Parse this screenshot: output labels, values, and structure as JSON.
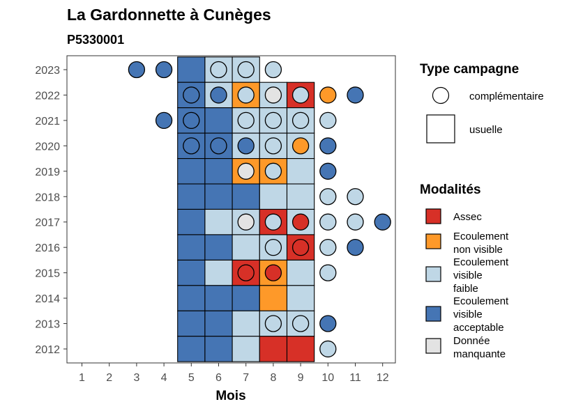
{
  "chart_data": {
    "type": "heatmap",
    "title": "La Gardonnette à Cunèges",
    "subtitle": "P5330001",
    "xlabel": "Mois",
    "x_ticks": [
      1,
      2,
      3,
      4,
      5,
      6,
      7,
      8,
      9,
      10,
      11,
      12
    ],
    "y_ticks": [
      2012,
      2013,
      2014,
      2015,
      2016,
      2017,
      2018,
      2019,
      2020,
      2021,
      2022,
      2023
    ],
    "modalites": [
      {
        "key": "assec",
        "label_lines": [
          "Assec"
        ],
        "color": "#d73027"
      },
      {
        "key": "ecnv",
        "label_lines": [
          "Ecoulement",
          "non visible"
        ],
        "color": "#fe9929"
      },
      {
        "key": "ecvf",
        "label_lines": [
          "Ecoulement",
          "visible",
          "faible"
        ],
        "color": "#bfd7e6"
      },
      {
        "key": "ecva",
        "label_lines": [
          "Ecoulement",
          "visible",
          "acceptable"
        ],
        "color": "#4575b4"
      },
      {
        "key": "dm",
        "label_lines": [
          "Donnée",
          "manquante"
        ],
        "color": "#e3e3e3"
      }
    ],
    "legend_type_title": "Type campagne",
    "legend_type_items": [
      "complémentaire",
      "usuelle"
    ],
    "legend_modalites_title": "Modalités",
    "usuelle": [
      {
        "year": 2023,
        "month": 5,
        "m": "ecva"
      },
      {
        "year": 2023,
        "month": 6,
        "m": "ecvf"
      },
      {
        "year": 2023,
        "month": 7,
        "m": "ecvf"
      },
      {
        "year": 2022,
        "month": 5,
        "m": "ecva"
      },
      {
        "year": 2022,
        "month": 6,
        "m": "ecvf"
      },
      {
        "year": 2022,
        "month": 7,
        "m": "ecnv"
      },
      {
        "year": 2022,
        "month": 8,
        "m": "ecvf"
      },
      {
        "year": 2022,
        "month": 9,
        "m": "assec"
      },
      {
        "year": 2021,
        "month": 5,
        "m": "ecva"
      },
      {
        "year": 2021,
        "month": 6,
        "m": "ecva"
      },
      {
        "year": 2021,
        "month": 7,
        "m": "ecvf"
      },
      {
        "year": 2021,
        "month": 8,
        "m": "ecvf"
      },
      {
        "year": 2021,
        "month": 9,
        "m": "ecvf"
      },
      {
        "year": 2020,
        "month": 5,
        "m": "ecva"
      },
      {
        "year": 2020,
        "month": 6,
        "m": "ecva"
      },
      {
        "year": 2020,
        "month": 7,
        "m": "ecvf"
      },
      {
        "year": 2020,
        "month": 8,
        "m": "ecvf"
      },
      {
        "year": 2020,
        "month": 9,
        "m": "ecvf"
      },
      {
        "year": 2019,
        "month": 5,
        "m": "ecva"
      },
      {
        "year": 2019,
        "month": 6,
        "m": "ecva"
      },
      {
        "year": 2019,
        "month": 7,
        "m": "ecnv"
      },
      {
        "year": 2019,
        "month": 8,
        "m": "ecnv"
      },
      {
        "year": 2019,
        "month": 9,
        "m": "ecvf"
      },
      {
        "year": 2018,
        "month": 5,
        "m": "ecva"
      },
      {
        "year": 2018,
        "month": 6,
        "m": "ecva"
      },
      {
        "year": 2018,
        "month": 7,
        "m": "ecva"
      },
      {
        "year": 2018,
        "month": 8,
        "m": "ecvf"
      },
      {
        "year": 2018,
        "month": 9,
        "m": "ecvf"
      },
      {
        "year": 2017,
        "month": 5,
        "m": "ecva"
      },
      {
        "year": 2017,
        "month": 6,
        "m": "ecvf"
      },
      {
        "year": 2017,
        "month": 7,
        "m": "ecvf"
      },
      {
        "year": 2017,
        "month": 8,
        "m": "assec"
      },
      {
        "year": 2017,
        "month": 9,
        "m": "ecvf"
      },
      {
        "year": 2016,
        "month": 5,
        "m": "ecva"
      },
      {
        "year": 2016,
        "month": 6,
        "m": "ecva"
      },
      {
        "year": 2016,
        "month": 7,
        "m": "ecvf"
      },
      {
        "year": 2016,
        "month": 8,
        "m": "ecvf"
      },
      {
        "year": 2016,
        "month": 9,
        "m": "assec"
      },
      {
        "year": 2015,
        "month": 5,
        "m": "ecva"
      },
      {
        "year": 2015,
        "month": 6,
        "m": "ecvf"
      },
      {
        "year": 2015,
        "month": 7,
        "m": "assec"
      },
      {
        "year": 2015,
        "month": 8,
        "m": "ecnv"
      },
      {
        "year": 2015,
        "month": 9,
        "m": "ecvf"
      },
      {
        "year": 2014,
        "month": 5,
        "m": "ecva"
      },
      {
        "year": 2014,
        "month": 6,
        "m": "ecva"
      },
      {
        "year": 2014,
        "month": 7,
        "m": "ecva"
      },
      {
        "year": 2014,
        "month": 8,
        "m": "ecnv"
      },
      {
        "year": 2014,
        "month": 9,
        "m": "ecvf"
      },
      {
        "year": 2013,
        "month": 5,
        "m": "ecva"
      },
      {
        "year": 2013,
        "month": 6,
        "m": "ecva"
      },
      {
        "year": 2013,
        "month": 7,
        "m": "ecvf"
      },
      {
        "year": 2013,
        "month": 8,
        "m": "ecvf"
      },
      {
        "year": 2013,
        "month": 9,
        "m": "ecvf"
      },
      {
        "year": 2012,
        "month": 5,
        "m": "ecva"
      },
      {
        "year": 2012,
        "month": 6,
        "m": "ecva"
      },
      {
        "year": 2012,
        "month": 7,
        "m": "ecvf"
      },
      {
        "year": 2012,
        "month": 8,
        "m": "assec"
      },
      {
        "year": 2012,
        "month": 9,
        "m": "assec"
      }
    ],
    "complementaire": [
      {
        "year": 2023,
        "month": 3,
        "m": "ecva"
      },
      {
        "year": 2023,
        "month": 4,
        "m": "ecva"
      },
      {
        "year": 2023,
        "month": 6,
        "m": "ecvf"
      },
      {
        "year": 2023,
        "month": 7,
        "m": "ecvf"
      },
      {
        "year": 2023,
        "month": 8,
        "m": "ecvf"
      },
      {
        "year": 2022,
        "month": 5,
        "m": "ecva"
      },
      {
        "year": 2022,
        "month": 6,
        "m": "ecva"
      },
      {
        "year": 2022,
        "month": 7,
        "m": "ecvf"
      },
      {
        "year": 2022,
        "month": 8,
        "m": "dm"
      },
      {
        "year": 2022,
        "month": 9,
        "m": "ecvf"
      },
      {
        "year": 2022,
        "month": 10,
        "m": "ecnv"
      },
      {
        "year": 2022,
        "month": 11,
        "m": "ecva"
      },
      {
        "year": 2021,
        "month": 4,
        "m": "ecva"
      },
      {
        "year": 2021,
        "month": 5,
        "m": "ecva"
      },
      {
        "year": 2021,
        "month": 7,
        "m": "ecvf"
      },
      {
        "year": 2021,
        "month": 8,
        "m": "ecvf"
      },
      {
        "year": 2021,
        "month": 9,
        "m": "ecvf"
      },
      {
        "year": 2021,
        "month": 10,
        "m": "ecvf"
      },
      {
        "year": 2020,
        "month": 5,
        "m": "ecva"
      },
      {
        "year": 2020,
        "month": 6,
        "m": "ecva"
      },
      {
        "year": 2020,
        "month": 7,
        "m": "ecva"
      },
      {
        "year": 2020,
        "month": 8,
        "m": "ecvf"
      },
      {
        "year": 2020,
        "month": 9,
        "m": "ecnv"
      },
      {
        "year": 2020,
        "month": 10,
        "m": "ecva"
      },
      {
        "year": 2019,
        "month": 7,
        "m": "dm"
      },
      {
        "year": 2019,
        "month": 8,
        "m": "ecvf"
      },
      {
        "year": 2019,
        "month": 10,
        "m": "ecva"
      },
      {
        "year": 2018,
        "month": 10,
        "m": "ecvf"
      },
      {
        "year": 2018,
        "month": 11,
        "m": "ecvf"
      },
      {
        "year": 2017,
        "month": 7,
        "m": "dm"
      },
      {
        "year": 2017,
        "month": 8,
        "m": "ecvf"
      },
      {
        "year": 2017,
        "month": 9,
        "m": "assec"
      },
      {
        "year": 2017,
        "month": 10,
        "m": "ecvf"
      },
      {
        "year": 2017,
        "month": 11,
        "m": "ecvf"
      },
      {
        "year": 2017,
        "month": 12,
        "m": "ecva"
      },
      {
        "year": 2016,
        "month": 8,
        "m": "ecvf"
      },
      {
        "year": 2016,
        "month": 9,
        "m": "assec"
      },
      {
        "year": 2016,
        "month": 10,
        "m": "ecvf"
      },
      {
        "year": 2016,
        "month": 11,
        "m": "ecva"
      },
      {
        "year": 2015,
        "month": 7,
        "m": "assec"
      },
      {
        "year": 2015,
        "month": 8,
        "m": "assec"
      },
      {
        "year": 2015,
        "month": 10,
        "m": "ecvf"
      },
      {
        "year": 2013,
        "month": 8,
        "m": "ecvf"
      },
      {
        "year": 2013,
        "month": 9,
        "m": "ecvf"
      },
      {
        "year": 2013,
        "month": 10,
        "m": "ecva"
      },
      {
        "year": 2012,
        "month": 10,
        "m": "ecvf"
      }
    ]
  }
}
